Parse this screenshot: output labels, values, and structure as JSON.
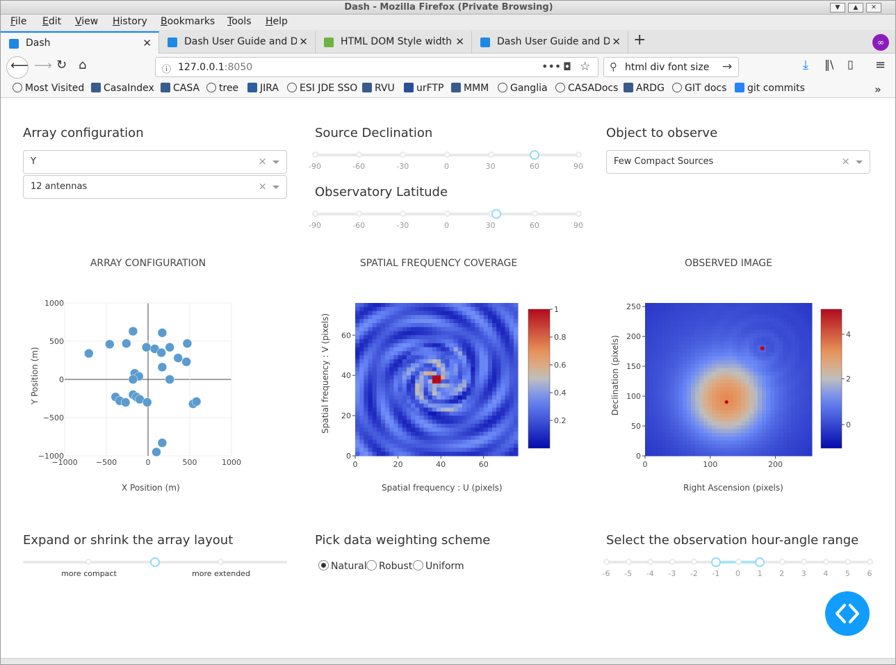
{
  "window": {
    "title": "Dash - Mozilla Firefox (Private Browsing)"
  },
  "menu": [
    {
      "label": "File",
      "key": "F",
      "rest": "ile"
    },
    {
      "label": "Edit",
      "key": "E",
      "rest": "dit"
    },
    {
      "label": "View",
      "key": "V",
      "rest": "iew"
    },
    {
      "label": "History",
      "key": "H",
      "rest": "istory"
    },
    {
      "label": "Bookmarks",
      "key": "B",
      "rest": "ookmarks"
    },
    {
      "label": "Tools",
      "key": "T",
      "rest": "ools"
    },
    {
      "label": "Help",
      "key": "H",
      "rest": "elp"
    }
  ],
  "tabs": [
    {
      "label": "Dash",
      "icon": "dash-favicon",
      "active": true
    },
    {
      "label": "Dash User Guide and Doc",
      "icon": "dash-favicon",
      "active": false
    },
    {
      "label": "HTML DOM Style width P",
      "icon": "w3schools-favicon",
      "active": false
    },
    {
      "label": "Dash User Guide and Doc",
      "icon": "dash-favicon",
      "active": false
    }
  ],
  "nav": {
    "url_host": "127.0.0.1",
    "url_port": ":8050",
    "search_value": "html div font size"
  },
  "bookmarks": [
    {
      "label": "Most Visited",
      "icon": "gear-icon"
    },
    {
      "label": "CasaIndex",
      "icon": "casa-icon"
    },
    {
      "label": "CASA",
      "icon": "casa-icon"
    },
    {
      "label": "tree",
      "icon": "globe-icon"
    },
    {
      "label": "JIRA",
      "icon": "jira-icon"
    },
    {
      "label": "ESI JDE SSO",
      "icon": "globe-icon"
    },
    {
      "label": "RVU",
      "icon": "casa-icon"
    },
    {
      "label": "urFTP",
      "icon": "monitor-icon"
    },
    {
      "label": "MMM",
      "icon": "casa-icon"
    },
    {
      "label": "Ganglia",
      "icon": "globe-icon"
    },
    {
      "label": "CASADocs",
      "icon": "globe-icon"
    },
    {
      "label": "ARDG",
      "icon": "casa-icon"
    },
    {
      "label": "GIT docs",
      "icon": "globe-icon"
    },
    {
      "label": "git commits",
      "icon": "bitbucket-icon"
    }
  ],
  "controls": {
    "array_config": {
      "heading": "Array configuration",
      "selected_layout": "Y",
      "selected_antennas": "12 antennas",
      "clear_glyph": "×"
    },
    "source_dec": {
      "heading": "Source Declination",
      "marks": [
        "-90",
        "-60",
        "-30",
        "0",
        "30",
        "60",
        "90"
      ],
      "value": 60,
      "min": -90,
      "max": 90
    },
    "obs_lat": {
      "heading": "Observatory Latitude",
      "marks": [
        "-90",
        "-60",
        "-30",
        "0",
        "30",
        "60",
        "90"
      ],
      "value": 34,
      "min": -90,
      "max": 90
    },
    "object": {
      "heading": "Object to observe",
      "selected": "Few Compact Sources",
      "clear_glyph": "×"
    },
    "expand": {
      "heading": "Expand or shrink the array layout",
      "marks": [
        "more compact",
        "more extended"
      ],
      "value_fraction": 0.5
    },
    "weighting": {
      "heading": "Pick data weighting scheme",
      "options": [
        "Natural",
        "Robust",
        "Uniform"
      ],
      "selected": "Natural"
    },
    "hour_angle": {
      "heading": "Select the observation hour-angle range",
      "marks": [
        "-6",
        "-5",
        "-4",
        "-3",
        "-2",
        "-1",
        "0",
        "1",
        "2",
        "3",
        "4",
        "5",
        "6"
      ],
      "range": [
        -1,
        1
      ],
      "min": -6,
      "max": 6
    }
  },
  "chart_data": [
    {
      "type": "scatter",
      "title": "ARRAY CONFIGURATION",
      "xlabel": "X Position (m)",
      "ylabel": "Y Position (m)",
      "xlim": [
        -1000,
        1000
      ],
      "ylim": [
        -1000,
        1000
      ],
      "xticks": [
        "−1000",
        "−500",
        "0",
        "500",
        "1000"
      ],
      "yticks": [
        "1000",
        "500",
        "0",
        "−500",
        "−1000"
      ],
      "grid": true,
      "color": "#5b9bd0",
      "points": [
        [
          -710,
          340
        ],
        [
          -460,
          460
        ],
        [
          -260,
          470
        ],
        [
          -180,
          630
        ],
        [
          170,
          610
        ],
        [
          -20,
          420
        ],
        [
          80,
          400
        ],
        [
          160,
          350
        ],
        [
          260,
          420
        ],
        [
          470,
          470
        ],
        [
          360,
          280
        ],
        [
          460,
          230
        ],
        [
          170,
          160
        ],
        [
          -160,
          80
        ],
        [
          -110,
          40
        ],
        [
          -180,
          0
        ],
        [
          260,
          0
        ],
        [
          -390,
          -230
        ],
        [
          -340,
          -280
        ],
        [
          -270,
          -300
        ],
        [
          -180,
          -200
        ],
        [
          -140,
          -230
        ],
        [
          -100,
          -260
        ],
        [
          -10,
          -300
        ],
        [
          540,
          -320
        ],
        [
          580,
          -290
        ],
        [
          170,
          -830
        ],
        [
          100,
          -950
        ]
      ]
    },
    {
      "type": "heatmap",
      "title": "SPATIAL FREQUENCY COVERAGE",
      "xlabel": "Spatial frequency : U (pixels)",
      "ylabel": "Spatial frequency : V (pixels)",
      "xlim": [
        0,
        76
      ],
      "ylim": [
        0,
        76
      ],
      "xticks": [
        "0",
        "20",
        "40",
        "60"
      ],
      "yticks": [
        "0",
        "20",
        "40",
        "60"
      ],
      "colorbar_ticks": [
        "1",
        "0.8",
        "0.6",
        "0.4",
        "0.2"
      ],
      "colorscale": "RdBu_r"
    },
    {
      "type": "heatmap",
      "title": "OBSERVED IMAGE",
      "xlabel": "Right Ascension (pixels)",
      "ylabel": "Declination (pixels)",
      "xlim": [
        0,
        256
      ],
      "ylim": [
        0,
        256
      ],
      "xticks": [
        "0",
        "100",
        "200"
      ],
      "yticks": [
        "0",
        "50",
        "100",
        "150",
        "200",
        "250"
      ],
      "colorbar_ticks": [
        "4",
        "2",
        "0"
      ],
      "colorscale": "RdBu_r"
    }
  ]
}
